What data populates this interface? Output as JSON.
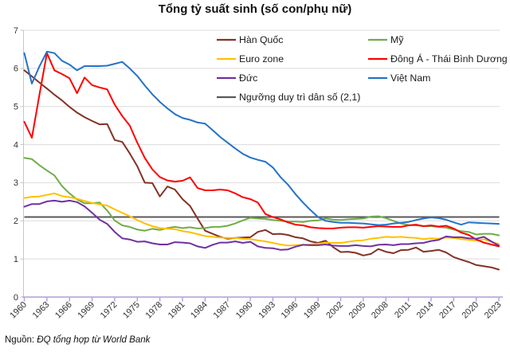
{
  "title": "Tổng tỷ suất sinh (số con/phụ nữ)",
  "source": {
    "prefix": "Nguồn: ",
    "text": "ĐQ tổng hợp từ World Bank"
  },
  "chart_data": {
    "type": "line",
    "title": "Tổng tỷ suất sinh (số con/phụ nữ)",
    "xlabel": "",
    "ylabel": "",
    "x_start_year": 1960,
    "x_end_year": 2023,
    "x_tick_years": [
      1960,
      1963,
      1966,
      1969,
      1972,
      1975,
      1978,
      1981,
      1984,
      1987,
      1990,
      1993,
      1996,
      1999,
      2002,
      2005,
      2008,
      2011,
      2014,
      2017,
      2020,
      2023
    ],
    "ylim": [
      0,
      7
    ],
    "y_ticks": [
      0,
      1,
      2,
      3,
      4,
      5,
      6,
      7
    ],
    "grid": true,
    "legend_position": "top-inside, two columns, transparent background",
    "series": [
      {
        "name": "Hàn Quốc",
        "slug": "han-quoc",
        "color": "#833225",
        "values": [
          5.95,
          5.79,
          5.63,
          5.47,
          5.31,
          5.16,
          4.99,
          4.84,
          4.72,
          4.62,
          4.53,
          4.54,
          4.12,
          4.07,
          3.77,
          3.43,
          3.0,
          2.99,
          2.64,
          2.9,
          2.82,
          2.57,
          2.39,
          2.06,
          1.74,
          1.66,
          1.58,
          1.53,
          1.55,
          1.56,
          1.57,
          1.71,
          1.76,
          1.65,
          1.66,
          1.63,
          1.57,
          1.54,
          1.46,
          1.42,
          1.48,
          1.31,
          1.18,
          1.19,
          1.16,
          1.09,
          1.13,
          1.26,
          1.19,
          1.15,
          1.23,
          1.24,
          1.3,
          1.19,
          1.21,
          1.24,
          1.17,
          1.05,
          0.98,
          0.92,
          0.84,
          0.81,
          0.78,
          0.72
        ]
      },
      {
        "name": "Mỹ",
        "slug": "my",
        "color": "#70AD47",
        "values": [
          3.65,
          3.62,
          3.46,
          3.32,
          3.19,
          2.91,
          2.72,
          2.56,
          2.46,
          2.46,
          2.48,
          2.27,
          2.01,
          1.88,
          1.84,
          1.77,
          1.74,
          1.79,
          1.76,
          1.81,
          1.84,
          1.81,
          1.83,
          1.8,
          1.81,
          1.84,
          1.84,
          1.87,
          1.93,
          2.01,
          2.08,
          2.06,
          2.05,
          2.02,
          2.0,
          1.98,
          1.98,
          1.97,
          2.0,
          2.01,
          2.06,
          2.03,
          2.02,
          2.04,
          2.05,
          2.06,
          2.11,
          2.12,
          2.07,
          2.0,
          1.93,
          1.89,
          1.88,
          1.86,
          1.86,
          1.84,
          1.82,
          1.77,
          1.73,
          1.71,
          1.64,
          1.66,
          1.66,
          1.62
        ]
      },
      {
        "name": "Euro zone",
        "slug": "euro-zone",
        "color": "#FFC000",
        "values": [
          2.6,
          2.63,
          2.64,
          2.68,
          2.72,
          2.65,
          2.62,
          2.58,
          2.52,
          2.47,
          2.43,
          2.4,
          2.3,
          2.21,
          2.12,
          2.02,
          1.93,
          1.86,
          1.81,
          1.79,
          1.78,
          1.73,
          1.7,
          1.65,
          1.6,
          1.58,
          1.56,
          1.55,
          1.55,
          1.53,
          1.52,
          1.49,
          1.46,
          1.42,
          1.38,
          1.35,
          1.36,
          1.37,
          1.38,
          1.4,
          1.43,
          1.42,
          1.42,
          1.45,
          1.48,
          1.49,
          1.53,
          1.55,
          1.58,
          1.57,
          1.58,
          1.56,
          1.55,
          1.52,
          1.54,
          1.53,
          1.56,
          1.55,
          1.52,
          1.5,
          1.48,
          1.52,
          1.45,
          1.39
        ]
      },
      {
        "name": "Đông Á - Thái Bình Dương",
        "slug": "dong-a-thai-binh-duong",
        "color": "#FF0000",
        "values": [
          4.6,
          4.18,
          5.3,
          6.4,
          5.95,
          5.85,
          5.74,
          5.35,
          5.76,
          5.56,
          5.5,
          5.45,
          5.05,
          4.75,
          4.5,
          4.05,
          3.65,
          3.35,
          3.15,
          3.06,
          3.03,
          3.05,
          3.14,
          2.86,
          2.8,
          2.8,
          2.82,
          2.8,
          2.72,
          2.62,
          2.57,
          2.48,
          2.18,
          2.1,
          2.04,
          1.96,
          1.9,
          1.88,
          1.83,
          1.81,
          1.8,
          1.8,
          1.82,
          1.83,
          1.83,
          1.82,
          1.84,
          1.86,
          1.85,
          1.84,
          1.84,
          1.88,
          1.9,
          1.86,
          1.88,
          1.85,
          1.87,
          1.8,
          1.69,
          1.63,
          1.51,
          1.43,
          1.38,
          1.33
        ]
      },
      {
        "name": "Đức",
        "slug": "duc",
        "color": "#7030A0",
        "values": [
          2.37,
          2.44,
          2.44,
          2.51,
          2.53,
          2.5,
          2.53,
          2.49,
          2.38,
          2.21,
          2.03,
          1.92,
          1.71,
          1.54,
          1.51,
          1.45,
          1.46,
          1.41,
          1.38,
          1.38,
          1.44,
          1.43,
          1.41,
          1.33,
          1.29,
          1.37,
          1.43,
          1.43,
          1.46,
          1.42,
          1.45,
          1.33,
          1.29,
          1.28,
          1.24,
          1.25,
          1.32,
          1.37,
          1.36,
          1.36,
          1.38,
          1.35,
          1.34,
          1.34,
          1.36,
          1.34,
          1.33,
          1.37,
          1.38,
          1.36,
          1.39,
          1.39,
          1.41,
          1.42,
          1.47,
          1.5,
          1.59,
          1.57,
          1.57,
          1.54,
          1.53,
          1.58,
          1.46,
          1.35
        ]
      },
      {
        "name": "Việt Nam",
        "slug": "viet-nam",
        "color": "#2373C8",
        "values": [
          6.4,
          5.6,
          6.05,
          6.44,
          6.4,
          6.2,
          6.1,
          5.95,
          6.06,
          6.06,
          6.06,
          6.07,
          6.12,
          6.17,
          6.0,
          5.8,
          5.55,
          5.32,
          5.12,
          4.95,
          4.8,
          4.7,
          4.65,
          4.58,
          4.55,
          4.38,
          4.2,
          4.05,
          3.9,
          3.76,
          3.66,
          3.6,
          3.55,
          3.4,
          3.15,
          2.95,
          2.7,
          2.48,
          2.28,
          2.1,
          2.0,
          1.97,
          1.95,
          1.95,
          1.94,
          1.93,
          1.91,
          1.89,
          1.9,
          1.93,
          1.95,
          1.97,
          2.02,
          2.06,
          2.09,
          2.07,
          2.03,
          1.96,
          1.9,
          1.96,
          1.95,
          1.94,
          1.93,
          1.92
        ]
      },
      {
        "name": "Ngưỡng duy trì dân số (2,1)",
        "slug": "nguong-duy-tri-dan-so",
        "color": "#595959",
        "threshold": 2.1
      }
    ],
    "legend_columns": [
      [
        "han-quoc",
        "euro-zone",
        "duc",
        "nguong-duy-tri-dan-so"
      ],
      [
        "my",
        "dong-a-thai-binh-duong",
        "viet-nam"
      ]
    ],
    "colors": {
      "grid": "#DCDCDC",
      "x_axis": "#B19BDB",
      "y_axis": "#C6C6C6",
      "tick_text": "#333333",
      "legend_text": "#1A1A1A"
    }
  }
}
